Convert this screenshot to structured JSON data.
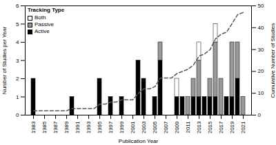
{
  "chart_data": {
    "type": "bar",
    "stacked": true,
    "x_label": "Publication Year",
    "y_label": "Number of Studies per Year",
    "y2_label": "Cumulative Number of Studies",
    "legend_title": "Tracking Type",
    "legend": "top-left",
    "categories": [
      1983,
      1984,
      1985,
      1986,
      1987,
      1988,
      1989,
      1990,
      1991,
      1992,
      1993,
      1994,
      1995,
      1996,
      1997,
      1998,
      1999,
      2000,
      2001,
      2002,
      2003,
      2004,
      2005,
      2006,
      2007,
      2008,
      2009,
      2010,
      2011,
      2012,
      2013,
      2014,
      2015,
      2016,
      2017,
      2018,
      2019,
      2020,
      2021
    ],
    "xticks": [
      1983,
      1985,
      1987,
      1989,
      1991,
      1993,
      1995,
      1997,
      1999,
      2001,
      2003,
      2005,
      2007,
      2009,
      2011,
      2013,
      2015,
      2017,
      2019,
      2021
    ],
    "ylim": [
      0,
      6
    ],
    "yticks": [
      0,
      1,
      2,
      3,
      4,
      5,
      6
    ],
    "y2lim": [
      0,
      50
    ],
    "y2ticks": [
      0,
      10,
      20,
      30,
      40,
      50
    ],
    "series": [
      {
        "name": "Active",
        "type": "bar",
        "color": "#000000",
        "values": [
          2,
          0,
          0,
          0,
          0,
          0,
          0,
          1,
          0,
          0,
          0,
          0,
          2,
          0,
          1,
          0,
          1,
          0,
          0,
          3,
          2,
          0,
          1,
          3,
          0,
          0,
          1,
          1,
          0,
          1,
          1,
          1,
          1,
          1,
          0,
          1,
          1,
          2,
          0
        ]
      },
      {
        "name": "Passive",
        "type": "bar",
        "color": "#999999",
        "values": [
          0,
          0,
          0,
          0,
          0,
          0,
          0,
          0,
          0,
          0,
          0,
          0,
          0,
          0,
          0,
          0,
          0,
          0,
          0,
          0,
          0,
          0,
          0,
          1,
          0,
          0,
          0,
          0,
          1,
          1,
          2,
          0,
          1,
          3,
          2,
          0,
          3,
          2,
          1
        ]
      },
      {
        "name": "Both",
        "type": "bar",
        "color": "#ffffff",
        "values": [
          0,
          0,
          0,
          0,
          0,
          0,
          0,
          0,
          0,
          0,
          0,
          0,
          0,
          0,
          0,
          0,
          0,
          0,
          0,
          0,
          0,
          0,
          0,
          0,
          0,
          0,
          1,
          0,
          0,
          0,
          1,
          0,
          0,
          1,
          0,
          0,
          0,
          0,
          0
        ]
      },
      {
        "type": "line",
        "axis": "y2",
        "line_style": "dashed",
        "color": "#555555",
        "values": [
          2,
          2,
          2,
          2,
          2,
          2,
          2,
          3,
          3,
          3,
          3,
          3,
          5,
          5,
          6,
          6,
          7,
          7,
          7,
          10,
          12,
          12,
          13,
          17,
          17,
          17,
          19,
          20,
          21,
          23,
          27,
          28,
          30,
          35,
          37,
          38,
          42,
          46,
          47
        ]
      }
    ]
  }
}
